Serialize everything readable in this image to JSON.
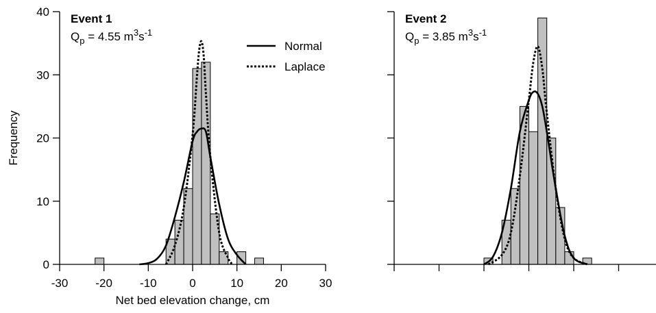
{
  "chart_data": [
    {
      "type": "bar",
      "panel_label": "Event 1",
      "annotation": {
        "base": "Q",
        "sub": "p",
        "text": " = 4.55 m",
        "sup1": "3",
        "mid": "s",
        "sup2": "-1"
      },
      "xlabel": "Net bed elevation change, cm",
      "ylabel": "Frequency",
      "xlim": [
        -30,
        30
      ],
      "ylim": [
        0,
        40
      ],
      "xticks": [
        -30,
        -20,
        -10,
        0,
        10,
        20,
        30
      ],
      "xtick_labels": [
        "-30",
        "-20",
        "-10",
        "0",
        "10",
        "20",
        "30"
      ],
      "yticks": [
        0,
        10,
        20,
        30,
        40
      ],
      "ytick_labels": [
        "0",
        "10",
        "20",
        "30",
        "40"
      ],
      "bin_width": 2,
      "histogram": [
        {
          "x0": -22,
          "x1": -20,
          "count": 1
        },
        {
          "x0": -6,
          "x1": -4,
          "count": 4
        },
        {
          "x0": -4,
          "x1": -2,
          "count": 7
        },
        {
          "x0": -2,
          "x1": 0,
          "count": 12
        },
        {
          "x0": 0,
          "x1": 2,
          "count": 31
        },
        {
          "x0": 2,
          "x1": 4,
          "count": 32
        },
        {
          "x0": 4,
          "x1": 6,
          "count": 8
        },
        {
          "x0": 6,
          "x1": 8,
          "count": 2
        },
        {
          "x0": 10,
          "x1": 12,
          "count": 2
        },
        {
          "x0": 14,
          "x1": 16,
          "count": 1
        }
      ],
      "series": [
        {
          "name": "Normal",
          "style": "solid",
          "x": [
            -12,
            -10,
            -8,
            -6,
            -4,
            -2,
            0,
            1,
            2,
            3,
            4,
            6,
            8,
            10,
            12
          ],
          "y": [
            0,
            0.2,
            0.9,
            3.0,
            7.5,
            13.0,
            19.5,
            21.0,
            21.5,
            21.0,
            17.0,
            9.5,
            4.0,
            1.5,
            0
          ]
        },
        {
          "name": "Laplace",
          "style": "dotted",
          "x": [
            -6,
            -4,
            -2,
            0,
            1,
            1.5,
            2,
            2.5,
            3,
            4,
            6,
            8,
            9
          ],
          "y": [
            0,
            3.0,
            9.0,
            20.5,
            30.0,
            34.0,
            35.3,
            33.0,
            27.0,
            17.0,
            5.0,
            1.0,
            0
          ]
        }
      ],
      "legend": {
        "placement": "top-right",
        "entries": [
          "Normal",
          "Laplace"
        ]
      },
      "grid": false
    },
    {
      "type": "bar",
      "panel_label": "Event 2",
      "annotation": {
        "base": "Q",
        "sub": "p",
        "text": " = 3.85 m",
        "sup1": "3",
        "mid": "s",
        "sup2": "-1"
      },
      "xlim": [
        -30,
        30
      ],
      "ylim": [
        0,
        40
      ],
      "xticks": [
        -30,
        -20,
        -10,
        0,
        10,
        20,
        30
      ],
      "yticks": [
        0,
        10,
        20,
        30,
        40
      ],
      "bin_width": 2,
      "histogram": [
        {
          "x0": -10,
          "x1": -8,
          "count": 1
        },
        {
          "x0": -6,
          "x1": -4,
          "count": 7
        },
        {
          "x0": -4,
          "x1": -2,
          "count": 12
        },
        {
          "x0": -2,
          "x1": 0,
          "count": 25
        },
        {
          "x0": 0,
          "x1": 2,
          "count": 21
        },
        {
          "x0": 2,
          "x1": 4,
          "count": 39
        },
        {
          "x0": 4,
          "x1": 6,
          "count": 20
        },
        {
          "x0": 6,
          "x1": 8,
          "count": 9
        },
        {
          "x0": 8,
          "x1": 10,
          "count": 2
        },
        {
          "x0": 12,
          "x1": 14,
          "count": 1
        }
      ],
      "series": [
        {
          "name": "Normal",
          "style": "solid",
          "x": [
            -10,
            -8,
            -6,
            -4,
            -2,
            0,
            1,
            2,
            3,
            4,
            6,
            8,
            10,
            13
          ],
          "y": [
            0,
            1.2,
            5.0,
            12.0,
            21.0,
            26.0,
            27.3,
            27.0,
            25.0,
            21.0,
            12.0,
            4.5,
            1.0,
            0
          ]
        },
        {
          "name": "Laplace",
          "style": "dotted",
          "x": [
            -9,
            -6,
            -4,
            -2,
            0,
            1,
            2,
            3,
            4,
            6,
            8,
            10,
            13
          ],
          "y": [
            0,
            1.5,
            5.0,
            14.0,
            26.0,
            32.0,
            34.5,
            31.0,
            24.0,
            12.0,
            4.0,
            1.0,
            0
          ]
        }
      ],
      "grid": false
    }
  ]
}
